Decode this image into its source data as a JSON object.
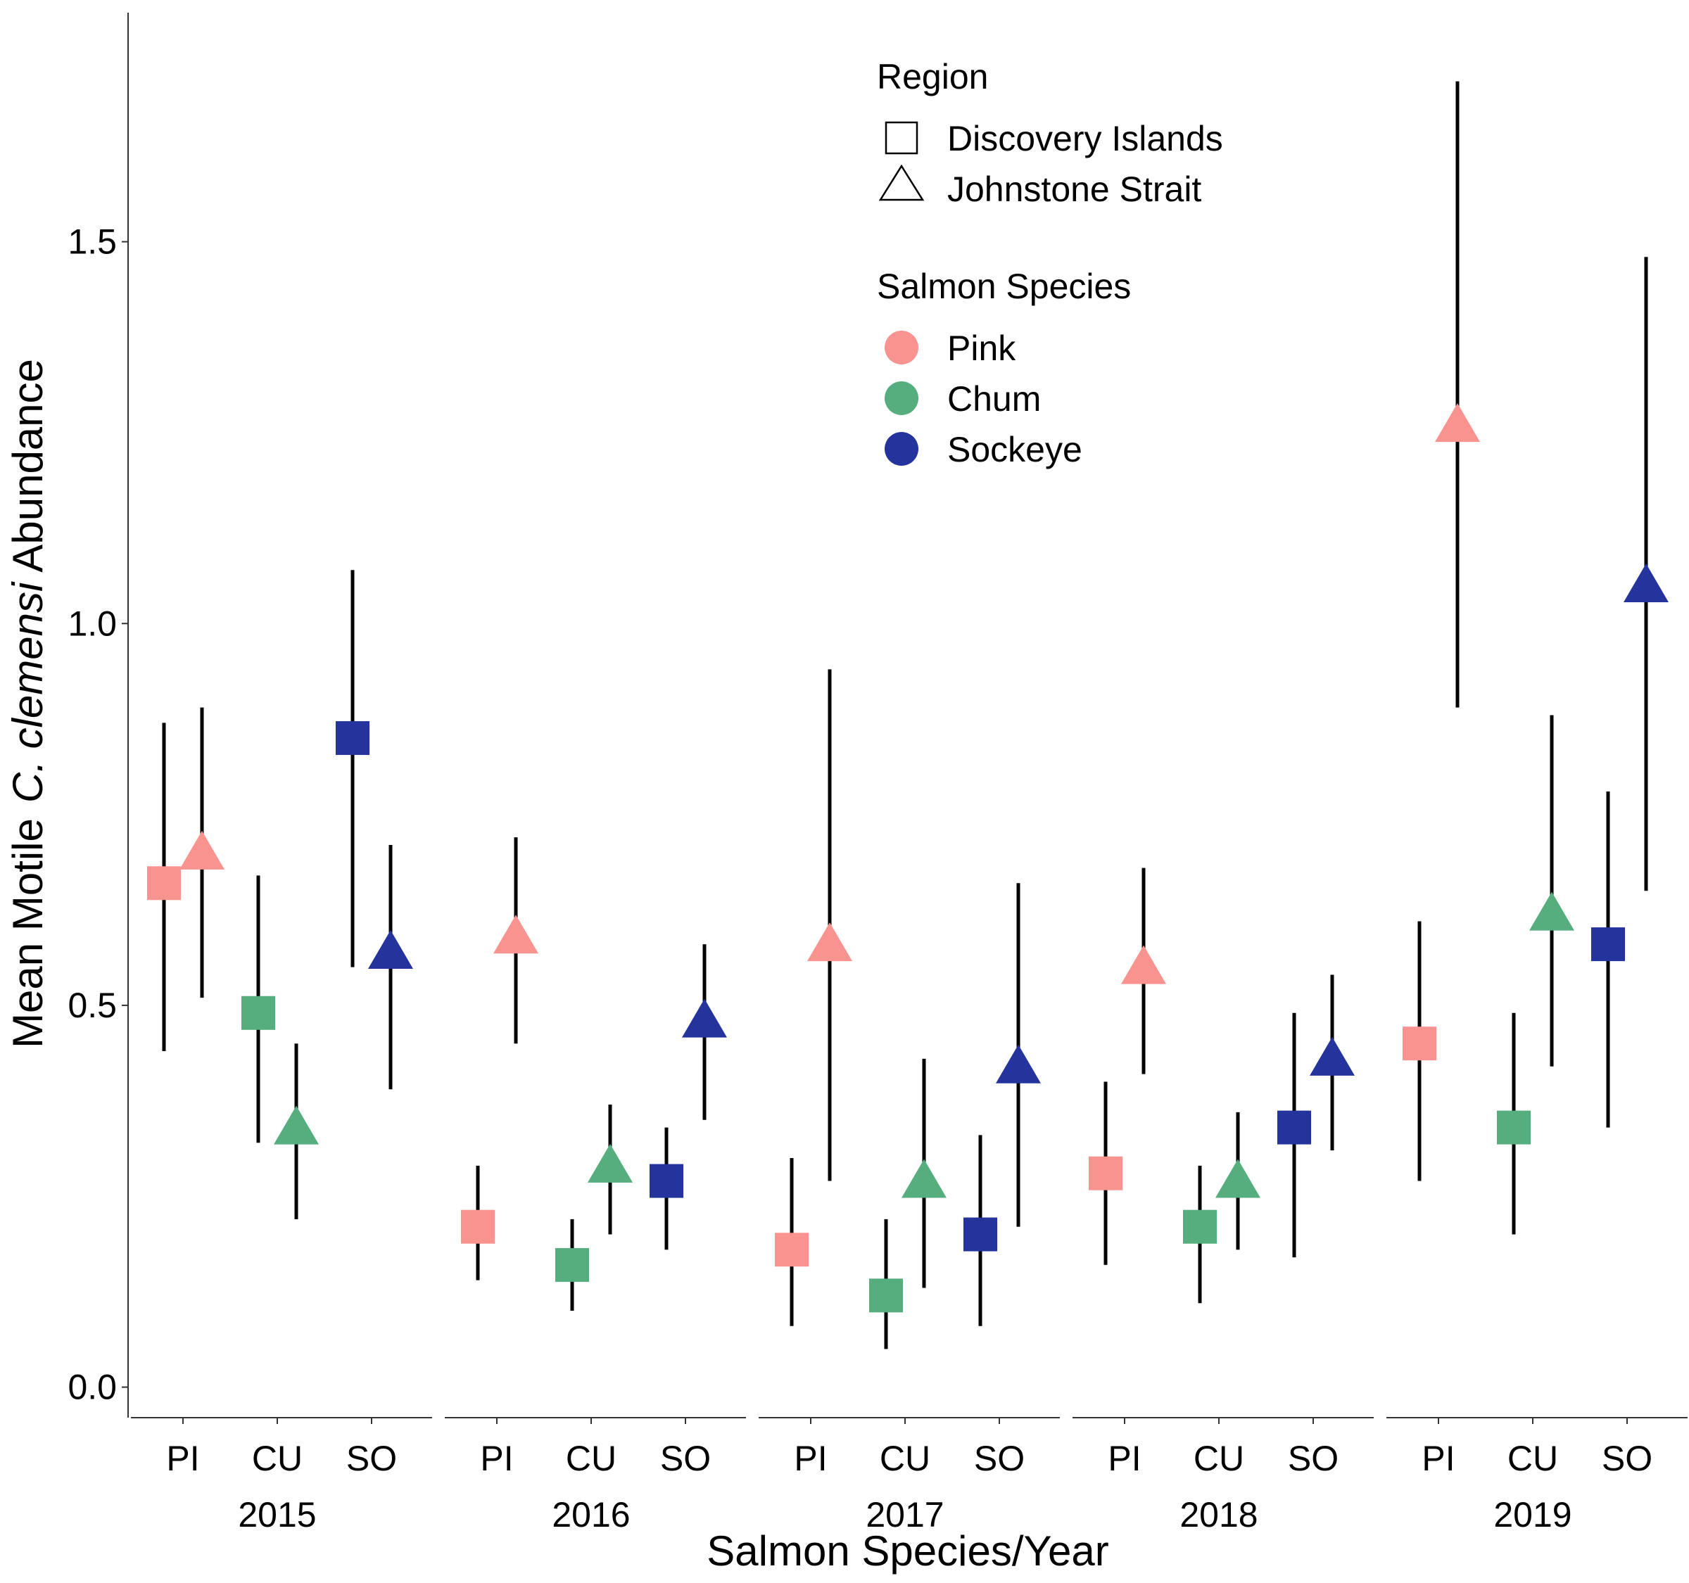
{
  "chart_data": {
    "type": "scatter",
    "xlabel": "Salmon Species/Year",
    "ylabel": {
      "prefix": "Mean Motile",
      "italic": "C. clemensi",
      "suffix": "Abundance"
    },
    "ylim": [
      -0.04,
      1.8
    ],
    "yticks": [
      "0.0",
      "0.5",
      "1.0",
      "1.5"
    ],
    "years": [
      "2015",
      "2016",
      "2017",
      "2018",
      "2019"
    ],
    "species_ticks": [
      "PI",
      "CU",
      "SO"
    ],
    "legend": {
      "placement": "top-right",
      "region_title": "Region",
      "regions": [
        {
          "key": "DI",
          "label": "Discovery Islands",
          "shape": "square"
        },
        {
          "key": "JS",
          "label": "Johnstone Strait",
          "shape": "triangle"
        }
      ],
      "species_title": "Salmon Species",
      "species": [
        {
          "key": "PI",
          "label": "Pink",
          "color": "#F8938F"
        },
        {
          "key": "CU",
          "label": "Chum",
          "color": "#56AD7E"
        },
        {
          "key": "SO",
          "label": "Sockeye",
          "color": "#24349C"
        }
      ]
    },
    "points": [
      {
        "year": "2015",
        "species": "PI",
        "region": "DI",
        "mean": 0.66,
        "lower": 0.44,
        "upper": 0.87
      },
      {
        "year": "2015",
        "species": "PI",
        "region": "JS",
        "mean": 0.7,
        "lower": 0.51,
        "upper": 0.89
      },
      {
        "year": "2015",
        "species": "CU",
        "region": "DI",
        "mean": 0.49,
        "lower": 0.32,
        "upper": 0.67
      },
      {
        "year": "2015",
        "species": "CU",
        "region": "JS",
        "mean": 0.34,
        "lower": 0.22,
        "upper": 0.45
      },
      {
        "year": "2015",
        "species": "SO",
        "region": "DI",
        "mean": 0.85,
        "lower": 0.55,
        "upper": 1.07
      },
      {
        "year": "2015",
        "species": "SO",
        "region": "JS",
        "mean": 0.57,
        "lower": 0.39,
        "upper": 0.71
      },
      {
        "year": "2016",
        "species": "PI",
        "region": "DI",
        "mean": 0.21,
        "lower": 0.14,
        "upper": 0.29
      },
      {
        "year": "2016",
        "species": "PI",
        "region": "JS",
        "mean": 0.59,
        "lower": 0.45,
        "upper": 0.72
      },
      {
        "year": "2016",
        "species": "CU",
        "region": "DI",
        "mean": 0.16,
        "lower": 0.1,
        "upper": 0.22
      },
      {
        "year": "2016",
        "species": "CU",
        "region": "JS",
        "mean": 0.29,
        "lower": 0.2,
        "upper": 0.37
      },
      {
        "year": "2016",
        "species": "SO",
        "region": "DI",
        "mean": 0.27,
        "lower": 0.18,
        "upper": 0.34
      },
      {
        "year": "2016",
        "species": "SO",
        "region": "JS",
        "mean": 0.48,
        "lower": 0.35,
        "upper": 0.58
      },
      {
        "year": "2017",
        "species": "PI",
        "region": "DI",
        "mean": 0.18,
        "lower": 0.08,
        "upper": 0.3
      },
      {
        "year": "2017",
        "species": "PI",
        "region": "JS",
        "mean": 0.58,
        "lower": 0.27,
        "upper": 0.94
      },
      {
        "year": "2017",
        "species": "CU",
        "region": "DI",
        "mean": 0.12,
        "lower": 0.05,
        "upper": 0.22
      },
      {
        "year": "2017",
        "species": "CU",
        "region": "JS",
        "mean": 0.27,
        "lower": 0.13,
        "upper": 0.43
      },
      {
        "year": "2017",
        "species": "SO",
        "region": "DI",
        "mean": 0.2,
        "lower": 0.08,
        "upper": 0.33
      },
      {
        "year": "2017",
        "species": "SO",
        "region": "JS",
        "mean": 0.42,
        "lower": 0.21,
        "upper": 0.66
      },
      {
        "year": "2018",
        "species": "PI",
        "region": "DI",
        "mean": 0.28,
        "lower": 0.16,
        "upper": 0.4
      },
      {
        "year": "2018",
        "species": "PI",
        "region": "JS",
        "mean": 0.55,
        "lower": 0.41,
        "upper": 0.68
      },
      {
        "year": "2018",
        "species": "CU",
        "region": "DI",
        "mean": 0.21,
        "lower": 0.11,
        "upper": 0.29
      },
      {
        "year": "2018",
        "species": "CU",
        "region": "JS",
        "mean": 0.27,
        "lower": 0.18,
        "upper": 0.36
      },
      {
        "year": "2018",
        "species": "SO",
        "region": "DI",
        "mean": 0.34,
        "lower": 0.17,
        "upper": 0.49
      },
      {
        "year": "2018",
        "species": "SO",
        "region": "JS",
        "mean": 0.43,
        "lower": 0.31,
        "upper": 0.54
      },
      {
        "year": "2019",
        "species": "PI",
        "region": "DI",
        "mean": 0.45,
        "lower": 0.27,
        "upper": 0.61
      },
      {
        "year": "2019",
        "species": "PI",
        "region": "JS",
        "mean": 1.26,
        "lower": 0.89,
        "upper": 1.71
      },
      {
        "year": "2019",
        "species": "CU",
        "region": "DI",
        "mean": 0.34,
        "lower": 0.2,
        "upper": 0.49
      },
      {
        "year": "2019",
        "species": "CU",
        "region": "JS",
        "mean": 0.62,
        "lower": 0.42,
        "upper": 0.88
      },
      {
        "year": "2019",
        "species": "SO",
        "region": "DI",
        "mean": 0.58,
        "lower": 0.34,
        "upper": 0.78
      },
      {
        "year": "2019",
        "species": "SO",
        "region": "JS",
        "mean": 1.05,
        "lower": 0.65,
        "upper": 1.48
      }
    ]
  }
}
